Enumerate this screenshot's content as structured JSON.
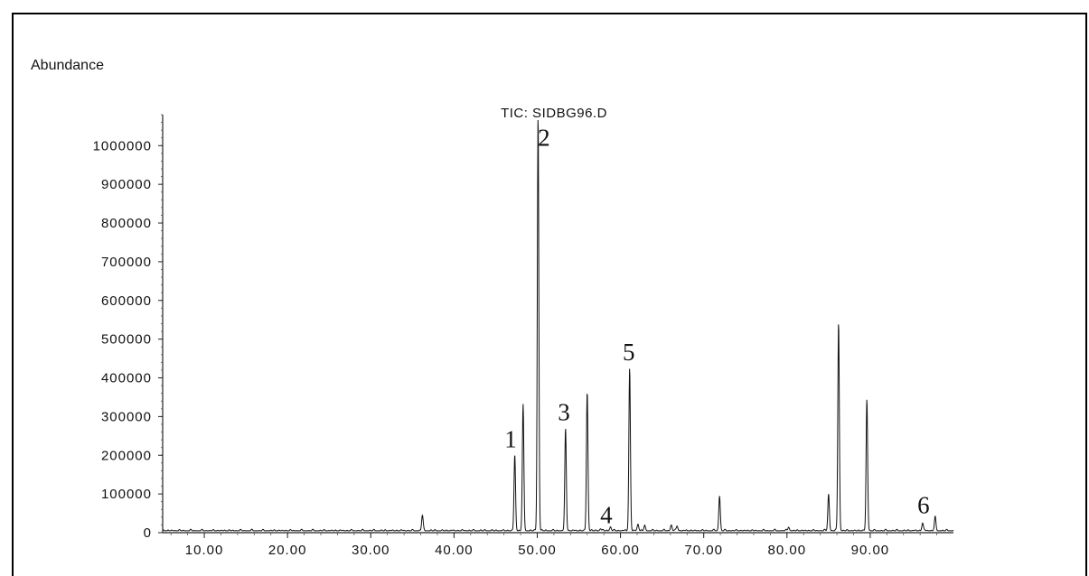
{
  "chart_data": {
    "type": "line",
    "title": "TIC: SIDBG96.D",
    "ylabel": "Abundance",
    "xlabel": "",
    "xlim": [
      5,
      100
    ],
    "ylim": [
      0,
      1080000
    ],
    "grid": false,
    "x_ticks": [
      10,
      20,
      30,
      40,
      50,
      60,
      70,
      80,
      90
    ],
    "x_tick_labels": [
      "10.00",
      "20.00",
      "30.00",
      "40.00",
      "50.00",
      "60.00",
      "70.00",
      "80.00",
      "90.00"
    ],
    "y_ticks": [
      0,
      100000,
      200000,
      300000,
      400000,
      500000,
      600000,
      700000,
      800000,
      900000,
      1000000
    ],
    "y_tick_labels": [
      "0",
      "100000",
      "200000",
      "300000",
      "400000",
      "500000",
      "600000",
      "700000",
      "800000",
      "900000",
      "1000000"
    ],
    "baseline": 5000,
    "peaks": [
      {
        "x": 36.2,
        "y": 45000
      },
      {
        "x": 47.3,
        "y": 200000
      },
      {
        "x": 48.3,
        "y": 330000
      },
      {
        "x": 50.1,
        "y": 1080000
      },
      {
        "x": 53.4,
        "y": 270000
      },
      {
        "x": 56.0,
        "y": 365000
      },
      {
        "x": 57.6,
        "y": 10000
      },
      {
        "x": 58.8,
        "y": 15000
      },
      {
        "x": 61.1,
        "y": 425000
      },
      {
        "x": 62.1,
        "y": 22000
      },
      {
        "x": 62.9,
        "y": 18000
      },
      {
        "x": 66.1,
        "y": 20000
      },
      {
        "x": 66.8,
        "y": 17000
      },
      {
        "x": 71.9,
        "y": 95000
      },
      {
        "x": 80.2,
        "y": 14000
      },
      {
        "x": 85.0,
        "y": 100000
      },
      {
        "x": 86.2,
        "y": 545000
      },
      {
        "x": 89.6,
        "y": 345000
      },
      {
        "x": 96.3,
        "y": 25000
      },
      {
        "x": 97.8,
        "y": 40000
      }
    ],
    "annotations": [
      {
        "text": "1",
        "x": 46.8,
        "y": 220000
      },
      {
        "text": "2",
        "x": 50.8,
        "y": 1000000
      },
      {
        "text": "3",
        "x": 53.2,
        "y": 290000
      },
      {
        "text": "4",
        "x": 58.3,
        "y": 25000
      },
      {
        "text": "5",
        "x": 61.0,
        "y": 445000
      },
      {
        "text": "6",
        "x": 96.4,
        "y": 50000
      }
    ]
  }
}
